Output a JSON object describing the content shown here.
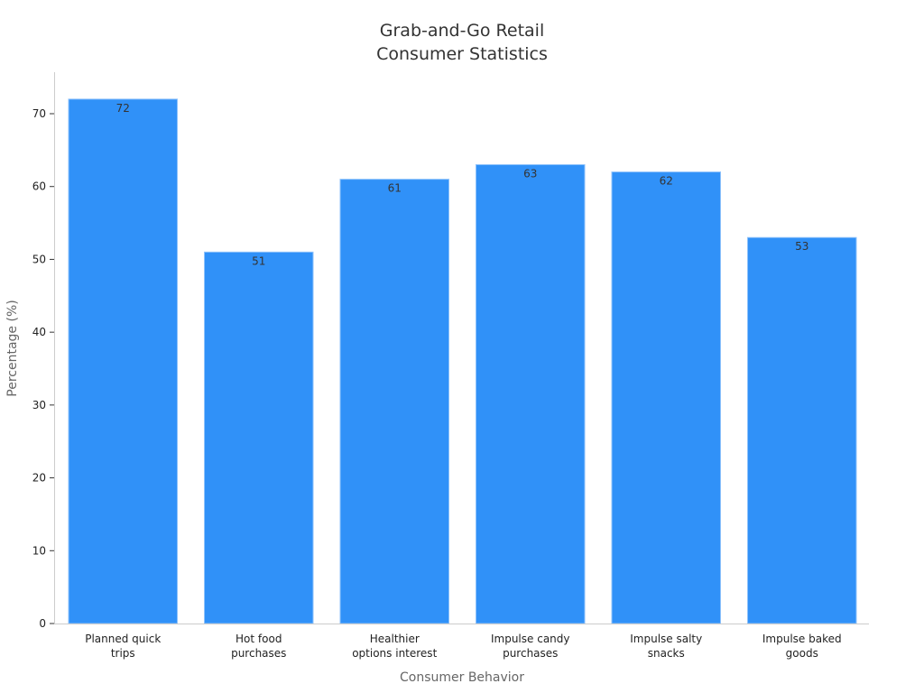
{
  "chart_data": {
    "type": "bar",
    "title": "Grab-and-Go Retail\nConsumer Statistics",
    "title_lines": [
      "Grab-and-Go Retail",
      "Consumer Statistics"
    ],
    "xlabel": "Consumer Behavior",
    "ylabel": "Percentage (%)",
    "categories": [
      "Planned quick trips",
      "Hot food purchases",
      "Healthier options interest",
      "Impulse candy purchases",
      "Impulse salty snacks",
      "Impulse baked goods"
    ],
    "category_lines": [
      [
        "Planned quick",
        "trips"
      ],
      [
        "Hot food",
        "purchases"
      ],
      [
        "Healthier",
        "options interest"
      ],
      [
        "Impulse candy",
        "purchases"
      ],
      [
        "Impulse salty",
        "snacks"
      ],
      [
        "Impulse baked",
        "goods"
      ]
    ],
    "values": [
      72,
      51,
      61,
      63,
      62,
      53
    ],
    "yticks": [
      0,
      10,
      20,
      30,
      40,
      50,
      60,
      70
    ],
    "ylim": [
      0,
      75.7
    ],
    "grid": false,
    "bar_color": "#3091f8"
  }
}
